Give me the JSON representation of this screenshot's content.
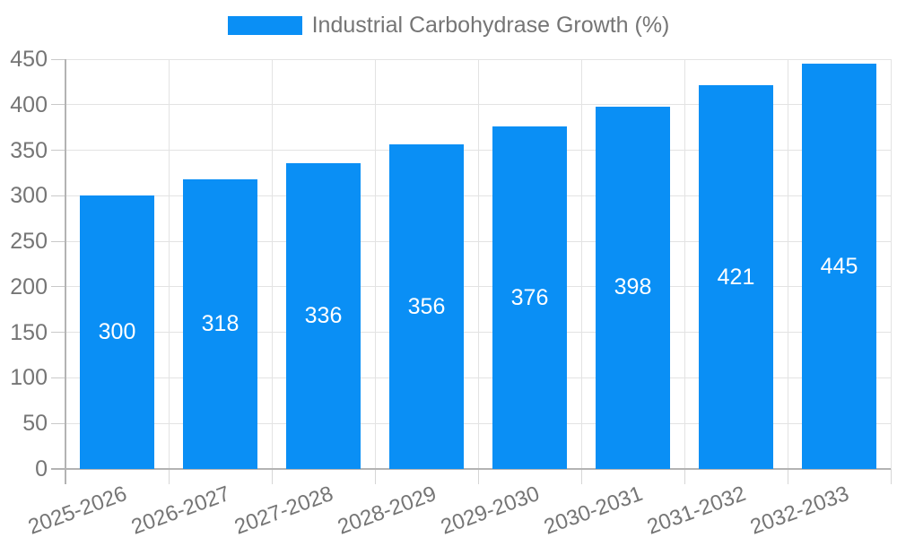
{
  "legend": {
    "items": [
      {
        "label": "Industrial Carbohydrase Growth (%)",
        "color": "#0A8FF5"
      }
    ]
  },
  "chart_data": {
    "type": "bar",
    "title": "",
    "series_name": "Industrial Carbohydrase Growth (%)",
    "categories": [
      "2025-2026",
      "2026-2027",
      "2027-2028",
      "2028-2029",
      "2029-2030",
      "2030-2031",
      "2031-2032",
      "2032-2033"
    ],
    "values": [
      300,
      318,
      336,
      356,
      376,
      398,
      421,
      445
    ],
    "value_labels": [
      "300",
      "318",
      "336",
      "356",
      "376",
      "398",
      "421",
      "445"
    ],
    "xlabel": "",
    "ylabel": "",
    "ylim": [
      0,
      450
    ],
    "yticks": [
      0,
      50,
      100,
      150,
      200,
      250,
      300,
      350,
      400,
      450
    ],
    "grid": "both",
    "legend_position": "top-center",
    "x_label_rotation_deg": -20,
    "colors": {
      "bar": "#0A8FF5",
      "grid": "#e3e3e3",
      "axis": "#b3b3b3",
      "tick": "#d6d6d6",
      "text": "#757575",
      "value_label": "#ffffff",
      "background": "#ffffff"
    }
  }
}
